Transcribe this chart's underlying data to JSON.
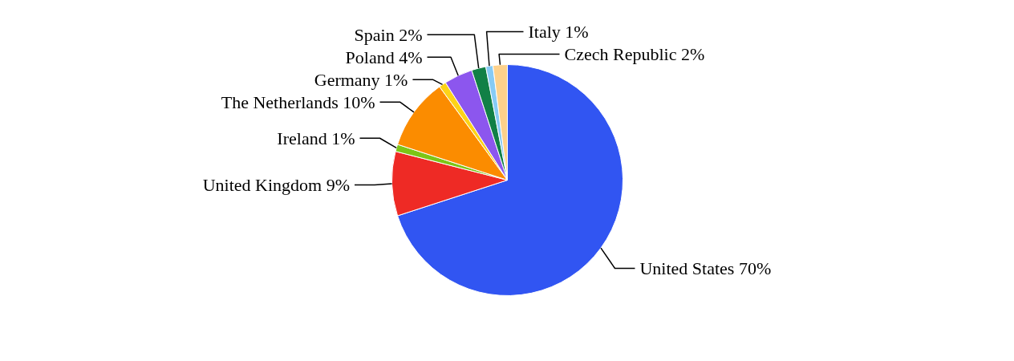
{
  "chart_data": {
    "type": "pie",
    "categories": [
      "United States",
      "United Kingdom",
      "Ireland",
      "The Netherlands",
      "Germany",
      "Poland",
      "Spain",
      "Italy",
      "Czech Republic"
    ],
    "values": [
      70,
      9,
      1,
      10,
      1,
      4,
      2,
      1,
      2
    ],
    "value_labels": [
      "70%",
      "9%",
      "1%",
      "10%",
      "1%",
      "4%",
      "2%",
      "1%",
      "2%"
    ],
    "colors": [
      "#3155f2",
      "#ee2a25",
      "#7cc516",
      "#fb8c00",
      "#fdd317",
      "#8c56ee",
      "#118046",
      "#86cbf5",
      "#fdd18b"
    ]
  }
}
